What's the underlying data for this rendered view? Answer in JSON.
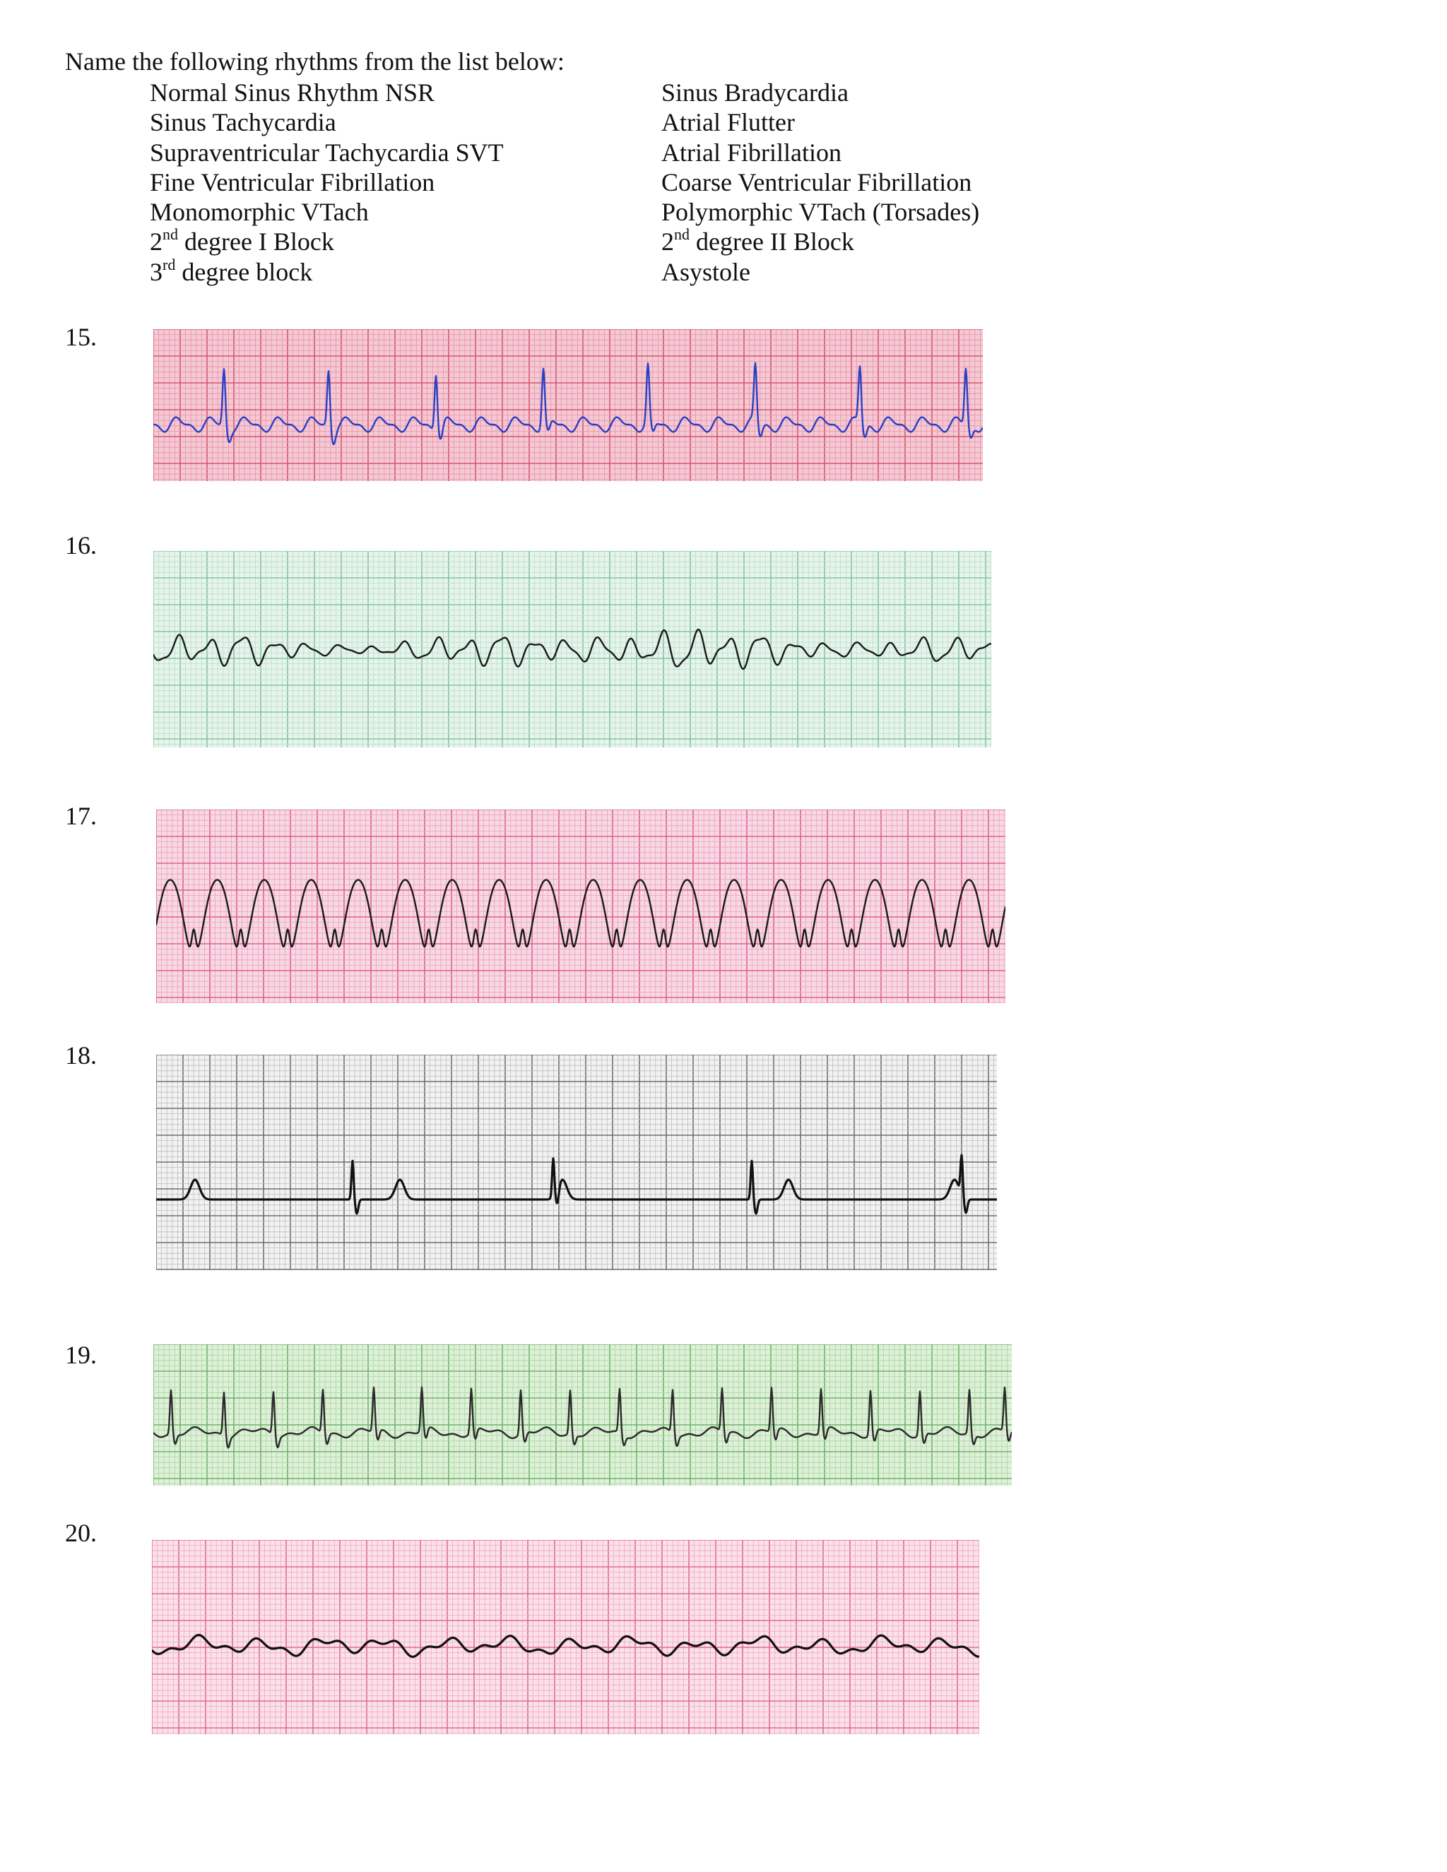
{
  "instructions": "Name the following rhythms from the list below:",
  "rhythm_options": {
    "left": [
      {
        "text": "Normal Sinus Rhythm NSR"
      },
      {
        "text": "Sinus Tachycardia"
      },
      {
        "text": "Supraventricular Tachycardia SVT"
      },
      {
        "text": "Fine Ventricular Fibrillation"
      },
      {
        "text": "Monomorphic VTach"
      },
      {
        "num": "2",
        "sup": "nd",
        "rest": " degree I Block"
      },
      {
        "num": "3",
        "sup": "rd",
        "rest": " degree block"
      }
    ],
    "right": [
      {
        "text": "Sinus Bradycardia"
      },
      {
        "text": "Atrial Flutter"
      },
      {
        "text": "Atrial Fibrillation"
      },
      {
        "text": "Coarse Ventricular Fibrillation"
      },
      {
        "text": "Polymorphic VTach (Torsades)"
      },
      {
        "num": "2",
        "sup": "nd",
        "rest": " degree II Block"
      },
      {
        "text": "Asystole"
      }
    ]
  },
  "questions": [
    {
      "number": "15.",
      "paper_color": "#f4c9d4",
      "minor_grid": "#e892a8",
      "major_grid": "#d4566f",
      "trace_color": "#2a3fc4",
      "pattern": "narrow-complex-flutter-waves"
    },
    {
      "number": "16.",
      "paper_color": "#e6f4ec",
      "minor_grid": "#b9dec8",
      "major_grid": "#86c3a0",
      "trace_color": "#1a1a1a",
      "pattern": "irregular-chaotic-waves"
    },
    {
      "number": "17.",
      "paper_color": "#f7d9e4",
      "minor_grid": "#ee9fbd",
      "major_grid": "#e0608e",
      "trace_color": "#1a1a1a",
      "pattern": "regular-wide-complexes"
    },
    {
      "number": "18.",
      "paper_color": "#f2f2f2",
      "minor_grid": "#bdbdbd",
      "major_grid": "#6e6e6e",
      "trace_color": "#111111",
      "pattern": "p-waves-with-dissociated-qrs"
    },
    {
      "number": "19.",
      "paper_color": "#dff0d8",
      "minor_grid": "#a8d6a3",
      "major_grid": "#6fb46a",
      "trace_color": "#2a2a2a",
      "pattern": "irregular-narrow-complexes"
    },
    {
      "number": "20.",
      "paper_color": "#fbe1ea",
      "minor_grid": "#f0a9c2",
      "major_grid": "#df6b95",
      "trace_color": "#111111",
      "pattern": "low-amplitude-fine-waves"
    }
  ]
}
